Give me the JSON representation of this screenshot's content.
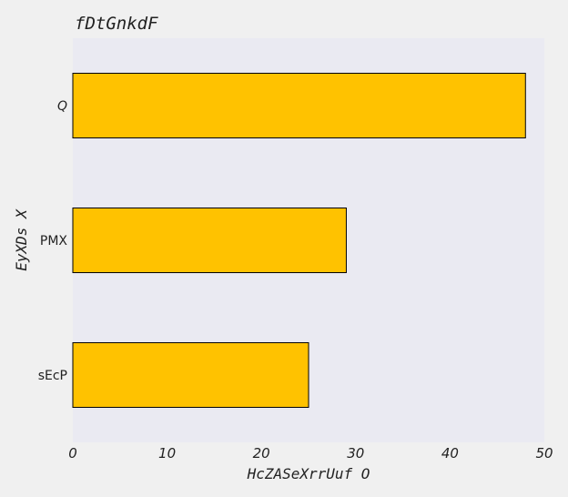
{
  "chart_data": {
    "type": "bar",
    "orientation": "horizontal",
    "title": "fDtGnkdF",
    "xlabel": "HcZASeXrrUuf O",
    "ylabel": "EyXDs  X",
    "categories": [
      "sEcP",
      "PMX",
      "Q"
    ],
    "values": [
      25,
      29,
      48
    ],
    "xlim": [
      0,
      50
    ],
    "xticks": [
      0,
      10,
      20,
      30,
      40,
      50
    ],
    "grid": false,
    "legend": "none",
    "colors": {
      "bar_fill": "#ffc200",
      "bar_edge": "#000000",
      "plot_background": "#eaeaf2",
      "page_background": "#f0f0f0"
    }
  }
}
